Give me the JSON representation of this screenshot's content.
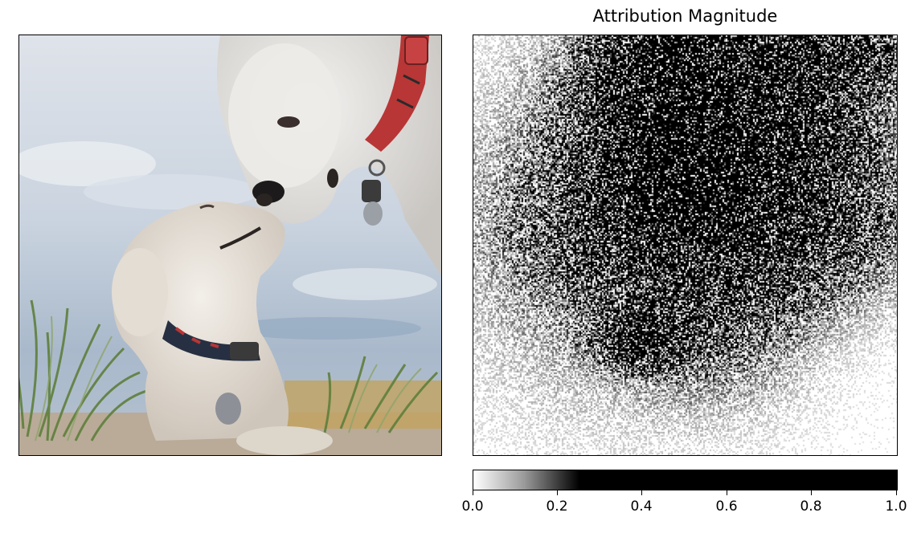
{
  "chart_data": [
    {
      "type": "image",
      "panel": "left",
      "description_hidden": true,
      "axes_visible": false
    },
    {
      "type": "heatmap",
      "title": "Attribution Magnitude",
      "colormap": "gray-reversed",
      "colorbar": {
        "orientation": "horizontal",
        "range": [
          0.0,
          1.0
        ],
        "ticks": [
          0.0,
          0.2,
          0.4,
          0.6,
          0.8,
          1.0
        ],
        "tick_labels": [
          "0.0",
          "0.2",
          "0.4",
          "0.6",
          "0.8",
          "1.0"
        ],
        "saturation_point": 0.25
      },
      "background_color": "#ffffff",
      "mark_color": "#000000"
    }
  ]
}
